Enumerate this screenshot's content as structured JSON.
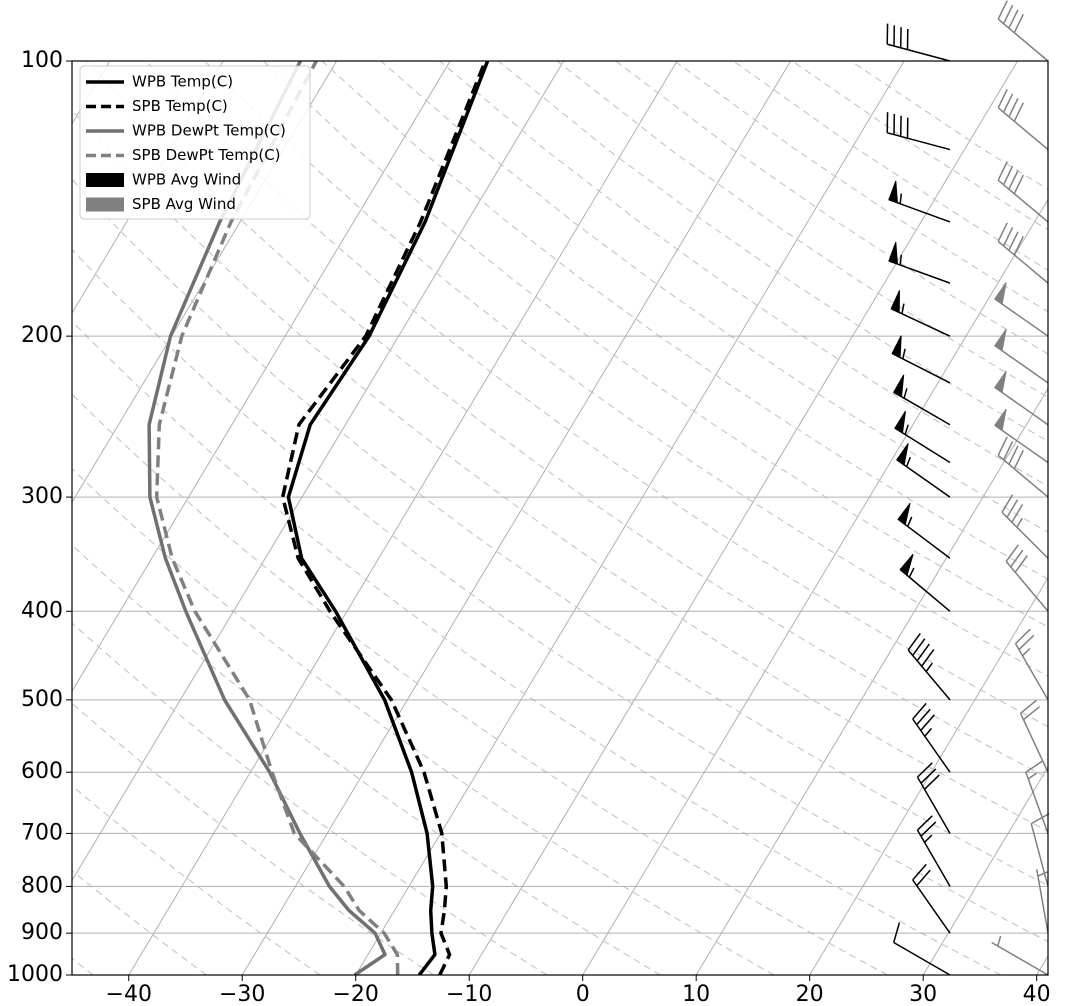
{
  "chart_data": {
    "type": "skewt",
    "y": [
      1000,
      950,
      900,
      850,
      800,
      700,
      600,
      500,
      400,
      350,
      300,
      250,
      200,
      150,
      100
    ],
    "series": [
      {
        "name": "WPB Temp(C)",
        "color": "#000000",
        "dashed": false,
        "values": [
          -14.4,
          -14.1,
          -15.5,
          -16.8,
          -17.9,
          -21.2,
          -25.8,
          -32.0,
          -41.0,
          -46.8,
          -51.2,
          -53.1,
          -52.6,
          -53.7,
          -56.7
        ]
      },
      {
        "name": "SPB Temp(C)",
        "color": "#000000",
        "dashed": true,
        "values": [
          -12.6,
          -12.8,
          -14.7,
          -15.6,
          -16.7,
          -19.9,
          -24.7,
          -31.4,
          -41.5,
          -47.1,
          -51.7,
          -54.1,
          -52.9,
          -54.1,
          -56.9
        ]
      },
      {
        "name": "WPB DewPt Temp(C)",
        "color": "#707070",
        "dashed": false,
        "values": [
          -20.1,
          -18.5,
          -20.5,
          -24.0,
          -27.0,
          -32.4,
          -38.3,
          -46.1,
          -54.2,
          -58.8,
          -63.4,
          -67.3,
          -70.1,
          -71.8,
          -73.2
        ]
      },
      {
        "name": "SPB DewPt Temp(C)",
        "color": "#808080",
        "dashed": true,
        "values": [
          -16.3,
          -17.4,
          -19.7,
          -23.1,
          -25.7,
          -32.9,
          -38.1,
          -43.9,
          -53.4,
          -58.2,
          -62.8,
          -66.4,
          -69.1,
          -70.8,
          -71.8
        ]
      }
    ],
    "wind_levels": [
      100,
      125,
      150,
      175,
      200,
      225,
      250,
      275,
      300,
      350,
      400,
      500,
      600,
      700,
      800,
      900,
      1000
    ],
    "winds": [
      {
        "name": "WPB Avg Wind",
        "color": "#000000",
        "speed": [
          40,
          40,
          55,
          55,
          55,
          55,
          55,
          55,
          55,
          55,
          55,
          45,
          35,
          30,
          25,
          20,
          10
        ],
        "direction": [
          285,
          285,
          290,
          290,
          295,
          297,
          300,
          302,
          305,
          307,
          310,
          320,
          325,
          330,
          330,
          325,
          300
        ]
      },
      {
        "name": "SPB Avg Wind",
        "color": "#808080",
        "speed": [
          40,
          40,
          40,
          40,
          50,
          50,
          50,
          50,
          40,
          35,
          30,
          25,
          20,
          15,
          10,
          5,
          5
        ],
        "direction": [
          310,
          310,
          310,
          310,
          305,
          305,
          305,
          305,
          310,
          315,
          320,
          330,
          335,
          340,
          345,
          350,
          300
        ]
      }
    ],
    "xlim": [
      -45,
      41
    ],
    "xticks": [
      {
        "value": -40,
        "label": "−40"
      },
      {
        "value": -30,
        "label": "−30"
      },
      {
        "value": -20,
        "label": "−20"
      },
      {
        "value": -10,
        "label": "−10"
      },
      0,
      10,
      20,
      30,
      40
    ],
    "ylim": [
      1000,
      100
    ],
    "yticks": [
      100,
      200,
      300,
      400,
      500,
      600,
      700,
      800,
      900,
      1000
    ],
    "ylog": true,
    "grid": true,
    "legend": "upper left"
  }
}
